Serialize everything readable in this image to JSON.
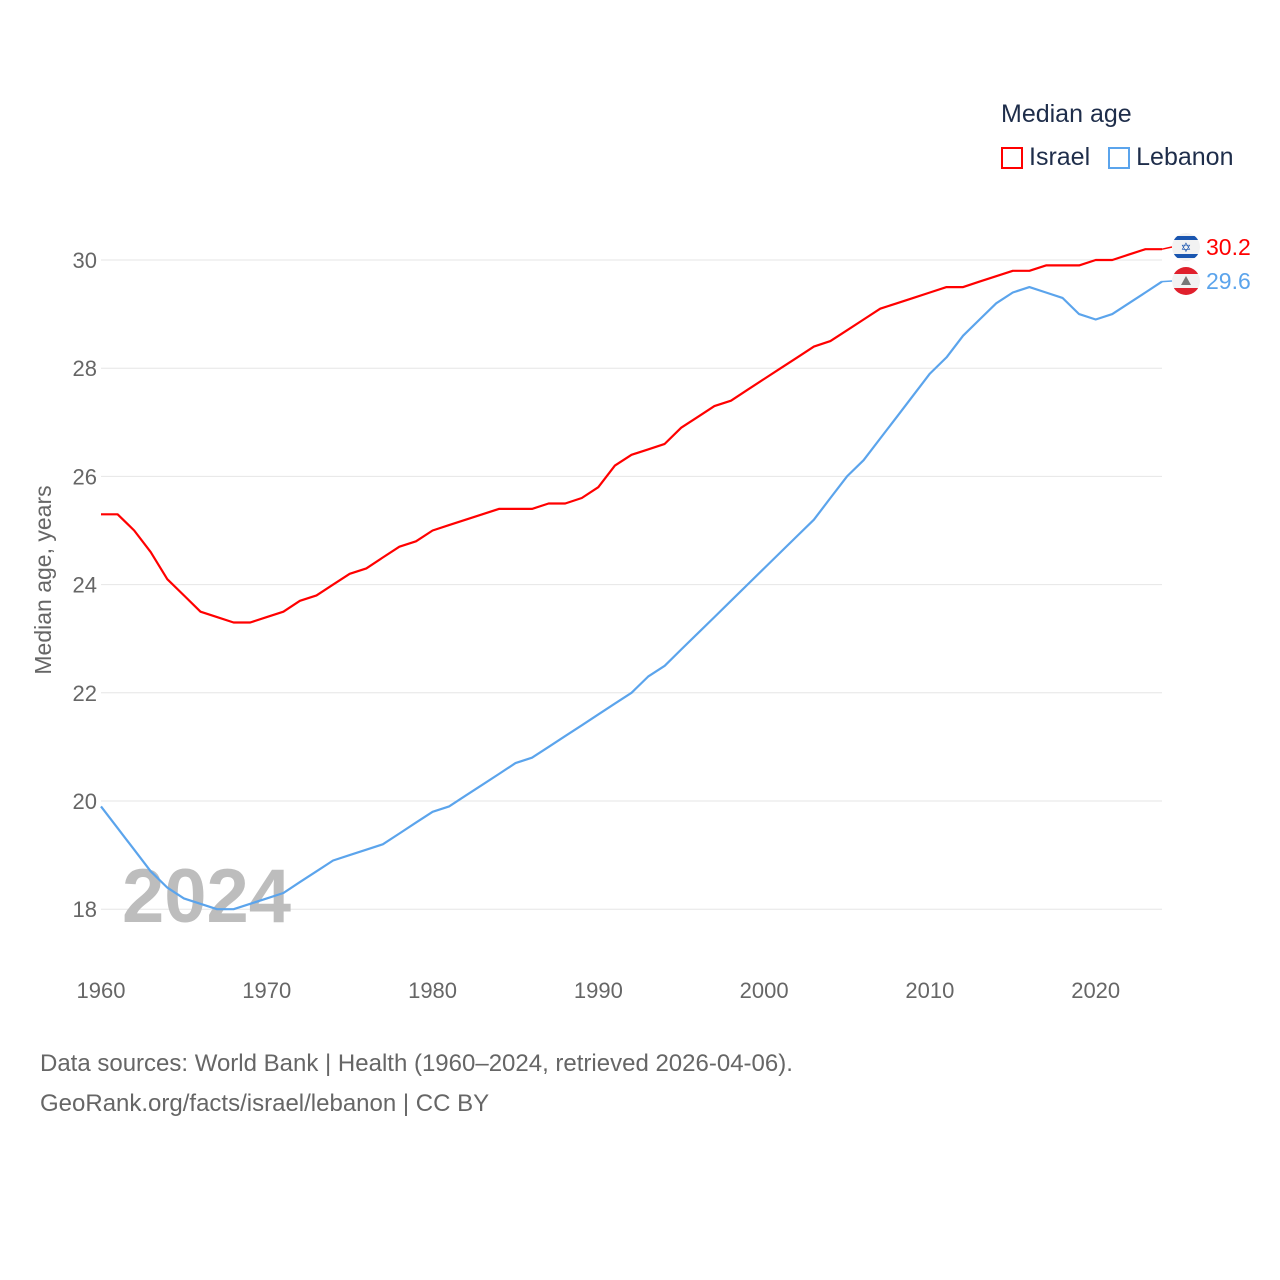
{
  "chart_data": {
    "type": "line",
    "title": "",
    "xlabel": "",
    "ylabel": "Median age, years",
    "xlim": [
      1960,
      2024
    ],
    "ylim": [
      17,
      30.5
    ],
    "yticks": [
      18,
      20,
      22,
      24,
      26,
      28,
      30
    ],
    "xticks": [
      1960,
      1970,
      1980,
      1990,
      2000,
      2010,
      2020
    ],
    "grid": true,
    "watermark_year": "2024",
    "legend": {
      "title": "Median age",
      "placement": "top-right"
    },
    "x": [
      1960,
      1961,
      1962,
      1963,
      1964,
      1965,
      1966,
      1967,
      1968,
      1969,
      1970,
      1971,
      1972,
      1973,
      1974,
      1975,
      1976,
      1977,
      1978,
      1979,
      1980,
      1981,
      1982,
      1983,
      1984,
      1985,
      1986,
      1987,
      1988,
      1989,
      1990,
      1991,
      1992,
      1993,
      1994,
      1995,
      1996,
      1997,
      1998,
      1999,
      2000,
      2001,
      2002,
      2003,
      2004,
      2005,
      2006,
      2007,
      2008,
      2009,
      2010,
      2011,
      2012,
      2013,
      2014,
      2015,
      2016,
      2017,
      2018,
      2019,
      2020,
      2021,
      2022,
      2023,
      2024
    ],
    "series": [
      {
        "name": "Israel",
        "color": "#ff0000",
        "end_label": "30.2",
        "values": [
          25.3,
          25.3,
          25.0,
          24.6,
          24.1,
          23.8,
          23.5,
          23.4,
          23.3,
          23.3,
          23.4,
          23.5,
          23.7,
          23.8,
          24.0,
          24.2,
          24.3,
          24.5,
          24.7,
          24.8,
          25.0,
          25.1,
          25.2,
          25.3,
          25.4,
          25.4,
          25.4,
          25.5,
          25.5,
          25.6,
          25.8,
          26.2,
          26.4,
          26.5,
          26.6,
          26.9,
          27.1,
          27.3,
          27.4,
          27.6,
          27.8,
          28.0,
          28.2,
          28.4,
          28.5,
          28.7,
          28.9,
          29.1,
          29.2,
          29.3,
          29.4,
          29.5,
          29.5,
          29.6,
          29.7,
          29.8,
          29.8,
          29.9,
          29.9,
          29.9,
          30.0,
          30.0,
          30.1,
          30.2,
          30.2
        ]
      },
      {
        "name": "Lebanon",
        "color": "#5ba4ec",
        "end_label": "29.6",
        "values": [
          19.9,
          19.5,
          19.1,
          18.7,
          18.4,
          18.2,
          18.1,
          18.0,
          18.0,
          18.1,
          18.2,
          18.3,
          18.5,
          18.7,
          18.9,
          19.0,
          19.1,
          19.2,
          19.4,
          19.6,
          19.8,
          19.9,
          20.1,
          20.3,
          20.5,
          20.7,
          20.8,
          21.0,
          21.2,
          21.4,
          21.6,
          21.8,
          22.0,
          22.3,
          22.5,
          22.8,
          23.1,
          23.4,
          23.7,
          24.0,
          24.3,
          24.6,
          24.9,
          25.2,
          25.6,
          26.0,
          26.3,
          26.7,
          27.1,
          27.5,
          27.9,
          28.2,
          28.6,
          28.9,
          29.2,
          29.4,
          29.5,
          29.4,
          29.3,
          29.0,
          28.9,
          29.0,
          29.2,
          29.4,
          29.6
        ]
      }
    ]
  },
  "footer": {
    "line1": "Data sources: World Bank | Health (1960–2024, retrieved 2026-04-06).",
    "line2": "GeoRank.org/facts/israel/lebanon | CC BY"
  }
}
